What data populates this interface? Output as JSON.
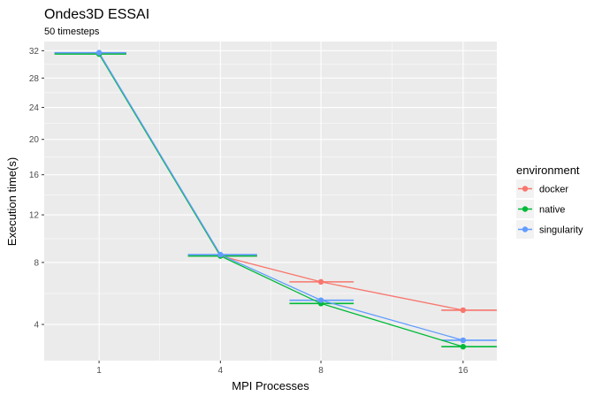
{
  "chart_data": {
    "type": "line",
    "title": "Ondes3D ESSAI",
    "subtitle": "50 timesteps",
    "xlabel": "MPI Processes",
    "ylabel": "Execution time(s)",
    "x_scale": "sqrt",
    "y_scale": "sqrt",
    "x_ticks": [
      1,
      4,
      8,
      16
    ],
    "y_ticks": [
      4,
      8,
      12,
      16,
      20,
      24,
      28,
      32
    ],
    "xlim": [
      0.3,
      18.3
    ],
    "ylim": [
      2.3,
      33.4
    ],
    "x": [
      1,
      4,
      8,
      16
    ],
    "series": [
      {
        "name": "docker",
        "color": "#F8766D",
        "values": [
          31.6,
          8.5,
          6.6,
          4.8
        ],
        "error_x_low": [
          0.4,
          3.0,
          6.6,
          14.6
        ],
        "error_x_high": [
          1.5,
          5.3,
          9.6,
          18.3
        ]
      },
      {
        "name": "native",
        "color": "#00BA38",
        "values": [
          31.5,
          8.5,
          5.2,
          2.9
        ],
        "error_x_low": [
          0.4,
          3.0,
          6.6,
          14.6
        ],
        "error_x_high": [
          1.5,
          5.3,
          9.6,
          18.3
        ]
      },
      {
        "name": "singularity",
        "color": "#619CFF",
        "values": [
          31.7,
          8.6,
          5.4,
          3.2
        ],
        "error_x_low": [
          0.4,
          3.0,
          6.6,
          14.6
        ],
        "error_x_high": [
          1.5,
          5.3,
          9.6,
          18.3
        ]
      }
    ],
    "legend": {
      "title": "environment",
      "position": "right"
    },
    "grid": true,
    "panel_background": "#EBEBEB"
  }
}
